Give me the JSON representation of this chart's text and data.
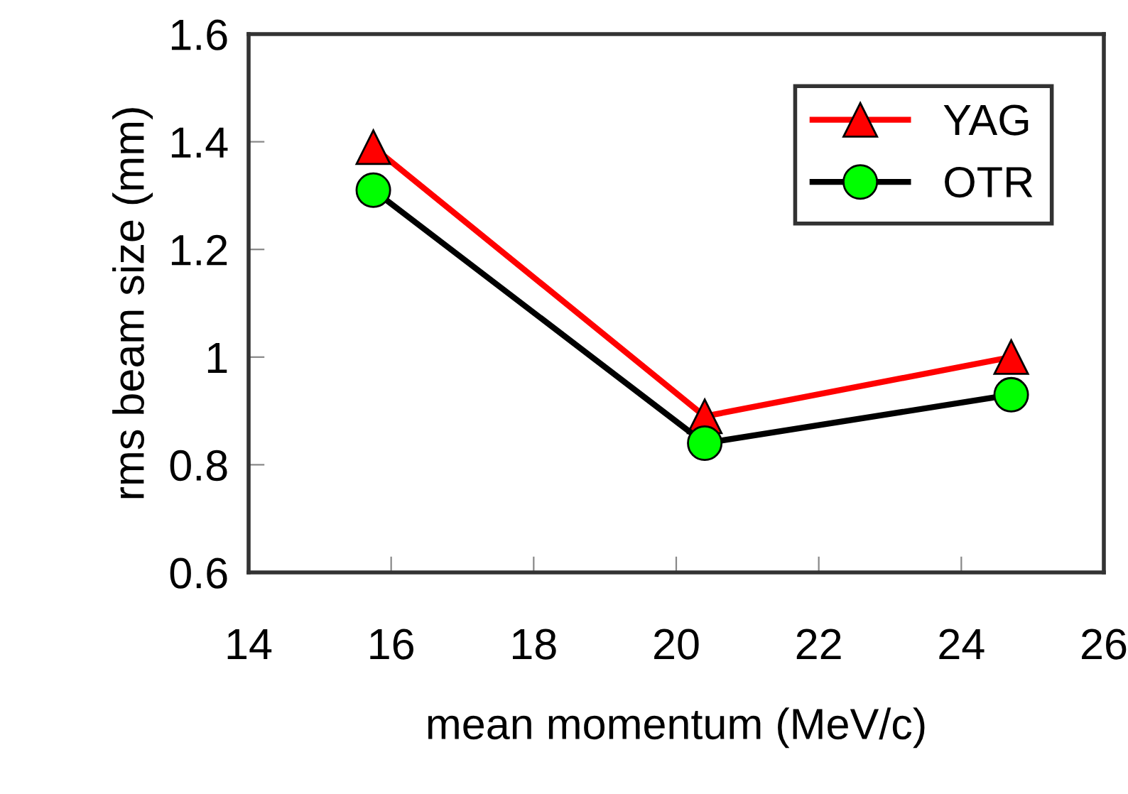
{
  "chart_data": {
    "type": "line",
    "xlabel": "mean momentum (MeV/c)",
    "ylabel": "rms beam size (mm)",
    "x": [
      15.75,
      20.4,
      24.7
    ],
    "series": [
      {
        "name": "YAG",
        "color": "#ff0000",
        "values": [
          1.39,
          0.89,
          1.0
        ],
        "marker": "triangle"
      },
      {
        "name": "OTR",
        "color": "#000000",
        "values": [
          1.31,
          0.84,
          0.93
        ],
        "marker": "circle"
      }
    ],
    "xlim": [
      14,
      26
    ],
    "xticks": [
      14,
      16,
      18,
      20,
      22,
      24,
      26
    ],
    "ylim": [
      0.6,
      1.6
    ],
    "yticks": [
      0.6,
      0.8,
      1,
      1.2,
      1.4,
      1.6
    ],
    "grid": false,
    "legend": "top right"
  }
}
